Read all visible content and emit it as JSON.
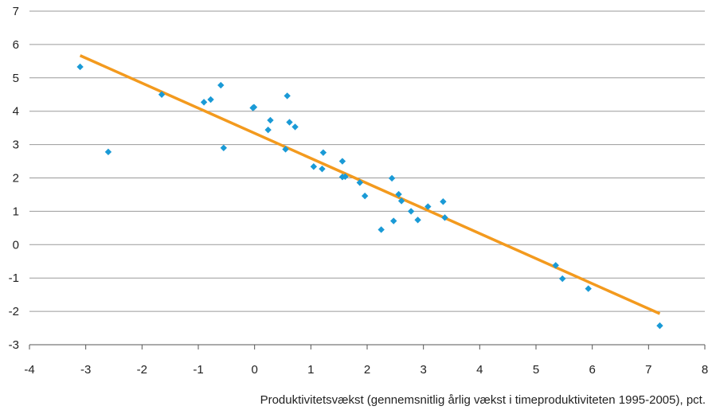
{
  "chart_data": {
    "type": "scatter",
    "title": "",
    "xlabel": "Produktivitetsvækst (gennemsnitlig årlig vækst i timeproduktiviteten 1995-2005), pct.",
    "ylabel": "",
    "xlim": [
      -4,
      8
    ],
    "ylim": [
      -3,
      7
    ],
    "xticks": [
      -4,
      -3,
      -2,
      -1,
      0,
      1,
      2,
      3,
      4,
      5,
      6,
      7,
      8
    ],
    "yticks": [
      -3,
      -2,
      -1,
      0,
      1,
      2,
      3,
      4,
      5,
      6,
      7
    ],
    "grid": "horizontal",
    "colors": {
      "points": "#1a9ad6",
      "trend": "#f39a1e",
      "grid": "#9a9a9a",
      "axis": "#555555"
    },
    "points": [
      {
        "x": -3.1,
        "y": 5.33
      },
      {
        "x": -2.6,
        "y": 2.78
      },
      {
        "x": -1.65,
        "y": 4.5
      },
      {
        "x": -0.9,
        "y": 4.27
      },
      {
        "x": -0.78,
        "y": 4.35
      },
      {
        "x": -0.6,
        "y": 4.78
      },
      {
        "x": -0.55,
        "y": 2.9
      },
      {
        "x": -0.03,
        "y": 4.1
      },
      {
        "x": -0.01,
        "y": 4.12
      },
      {
        "x": 0.24,
        "y": 3.44
      },
      {
        "x": 0.28,
        "y": 3.73
      },
      {
        "x": 0.55,
        "y": 2.86
      },
      {
        "x": 0.58,
        "y": 4.46
      },
      {
        "x": 0.62,
        "y": 3.67
      },
      {
        "x": 0.72,
        "y": 3.53
      },
      {
        "x": 1.05,
        "y": 2.34
      },
      {
        "x": 1.2,
        "y": 2.27
      },
      {
        "x": 1.22,
        "y": 2.76
      },
      {
        "x": 1.56,
        "y": 2.5
      },
      {
        "x": 1.56,
        "y": 2.03
      },
      {
        "x": 1.61,
        "y": 2.04
      },
      {
        "x": 1.87,
        "y": 1.86
      },
      {
        "x": 1.96,
        "y": 1.46
      },
      {
        "x": 2.25,
        "y": 0.45
      },
      {
        "x": 2.44,
        "y": 1.99
      },
      {
        "x": 2.47,
        "y": 0.71
      },
      {
        "x": 2.56,
        "y": 1.51
      },
      {
        "x": 2.61,
        "y": 1.31
      },
      {
        "x": 2.78,
        "y": 1.0
      },
      {
        "x": 2.9,
        "y": 0.74
      },
      {
        "x": 3.08,
        "y": 1.14
      },
      {
        "x": 3.35,
        "y": 1.29
      },
      {
        "x": 3.38,
        "y": 0.81
      },
      {
        "x": 5.35,
        "y": -0.62
      },
      {
        "x": 5.47,
        "y": -1.02
      },
      {
        "x": 5.93,
        "y": -1.32
      },
      {
        "x": 7.2,
        "y": -2.43
      }
    ],
    "trendline": [
      {
        "x": -3.1,
        "y": 5.67
      },
      {
        "x": 7.2,
        "y": -2.07
      }
    ]
  }
}
